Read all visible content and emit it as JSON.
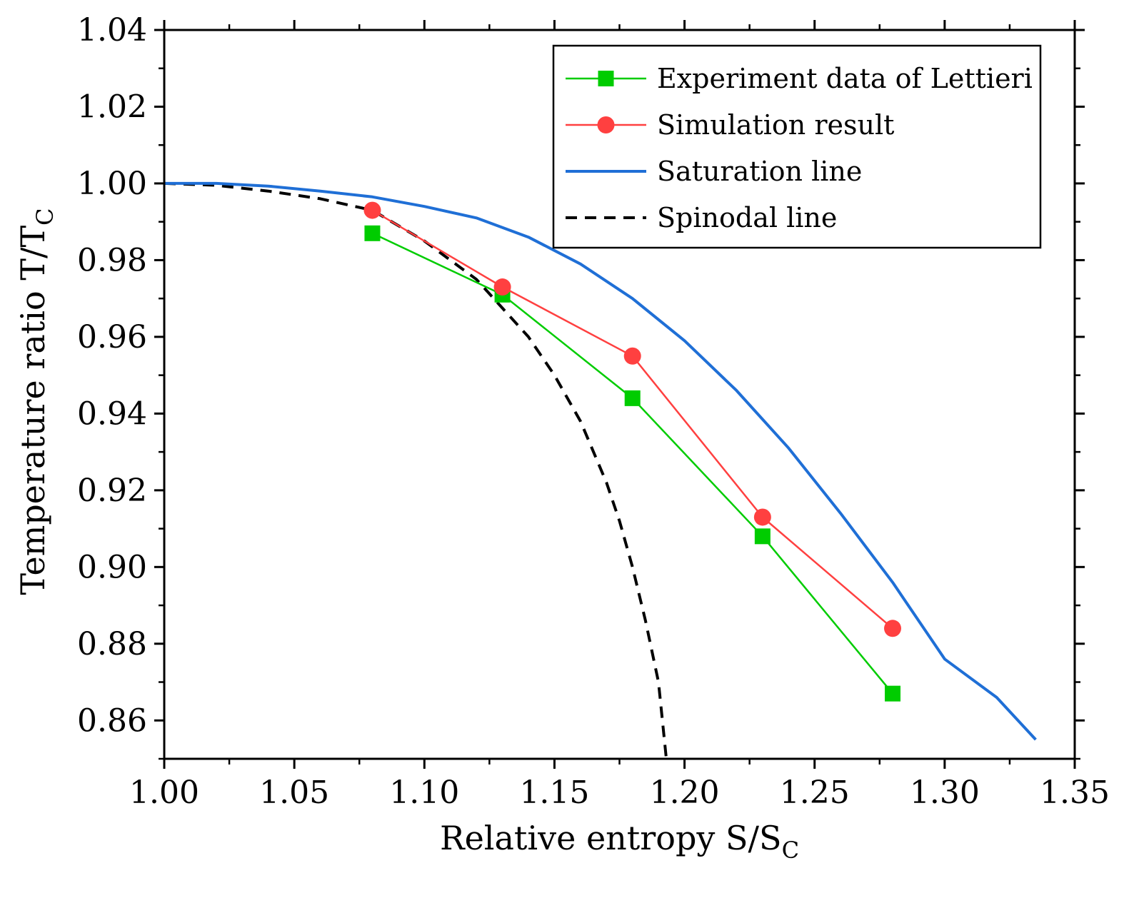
{
  "chart_data": {
    "type": "line",
    "title": "",
    "xlabel": {
      "main": "Relative entropy S/S",
      "sub": "C"
    },
    "ylabel": {
      "main": "Temperature ratio T/T",
      "sub": "C"
    },
    "xlim": [
      1.0,
      1.35
    ],
    "ylim": [
      0.85,
      1.04
    ],
    "x_ticks": [
      1.0,
      1.05,
      1.1,
      1.15,
      1.2,
      1.25,
      1.3,
      1.35
    ],
    "x_tick_labels": [
      "1.00",
      "1.05",
      "1.10",
      "1.15",
      "1.20",
      "1.25",
      "1.30",
      "1.35"
    ],
    "y_ticks": [
      0.86,
      0.88,
      0.9,
      0.92,
      0.94,
      0.96,
      0.98,
      1.0,
      1.02,
      1.04
    ],
    "y_tick_labels": [
      "0.86",
      "0.88",
      "0.90",
      "0.92",
      "0.94",
      "0.96",
      "0.98",
      "1.00",
      "1.02",
      "1.04"
    ],
    "legend_position": "top-right",
    "series": [
      {
        "name": "Experiment data of Lettieri",
        "style": "line+square",
        "color": "#00cc00",
        "x": [
          1.08,
          1.13,
          1.18,
          1.23,
          1.28
        ],
        "y": [
          0.987,
          0.971,
          0.944,
          0.908,
          0.867
        ]
      },
      {
        "name": "Simulation result",
        "style": "line+circle",
        "color": "#ff4040",
        "x": [
          1.08,
          1.13,
          1.18,
          1.23,
          1.28
        ],
        "y": [
          0.993,
          0.973,
          0.955,
          0.913,
          0.884
        ]
      },
      {
        "name": "Saturation line",
        "style": "solid",
        "color": "#1f6fd6",
        "x": [
          1.0,
          1.02,
          1.04,
          1.06,
          1.08,
          1.1,
          1.12,
          1.14,
          1.16,
          1.18,
          1.2,
          1.22,
          1.24,
          1.26,
          1.28,
          1.3,
          1.32,
          1.335
        ],
        "y": [
          1.0,
          1.0,
          0.9993,
          0.998,
          0.9965,
          0.994,
          0.991,
          0.986,
          0.979,
          0.97,
          0.959,
          0.946,
          0.931,
          0.914,
          0.896,
          0.876,
          0.866,
          0.855
        ]
      },
      {
        "name": "Spinodal line",
        "style": "dashed",
        "color": "#000000",
        "x": [
          1.0,
          1.02,
          1.04,
          1.06,
          1.08,
          1.1,
          1.12,
          1.14,
          1.15,
          1.16,
          1.17,
          1.175,
          1.18,
          1.185,
          1.19,
          1.193
        ],
        "y": [
          1.0,
          0.9995,
          0.998,
          0.996,
          0.993,
          0.985,
          0.975,
          0.96,
          0.95,
          0.938,
          0.922,
          0.912,
          0.9,
          0.886,
          0.87,
          0.85
        ]
      }
    ]
  }
}
